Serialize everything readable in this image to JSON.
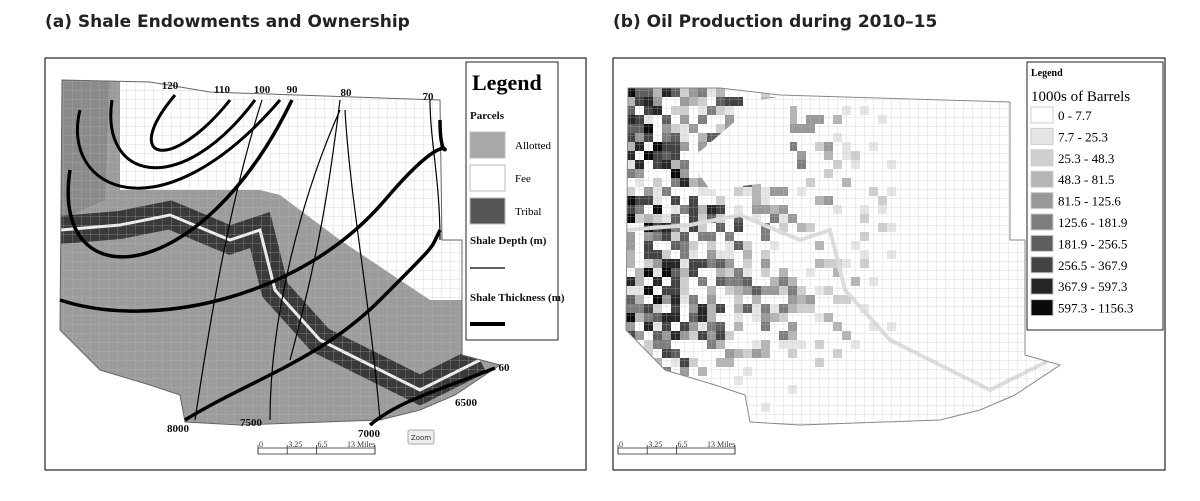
{
  "panels": [
    {
      "title": "(a) Shale Endowments and Ownership",
      "legend": {
        "title": "Legend",
        "parcels_heading": "Parcels",
        "parcels": [
          "Allotted",
          "Fee",
          "Tribal"
        ],
        "depth_heading": "Shale Depth (m)",
        "thickness_heading": "Shale Thickness (m)"
      },
      "contour_labels": [
        "120",
        "110",
        "100",
        "90",
        "80",
        "70",
        "60",
        "6500",
        "7000",
        "7500",
        "8000"
      ],
      "scale_bar": [
        "0",
        "3.25",
        "6.5",
        "13 Miles"
      ],
      "button": "Zoom"
    },
    {
      "title": "(b) Oil Production during 2010–15",
      "legend": {
        "title": "Legend",
        "unit": "1000s of Barrels",
        "classes": [
          "0 - 7.7",
          "7.7 - 25.3",
          "25.3 - 48.3",
          "48.3 - 81.5",
          "81.5 - 125.6",
          "125.6 - 181.9",
          "181.9 - 256.5",
          "256.5 - 367.9",
          "367.9 - 597.3",
          "597.3 - 1156.3"
        ]
      },
      "scale_bar": [
        "0",
        "3.25",
        "6.5",
        "13 Miles"
      ]
    }
  ]
}
